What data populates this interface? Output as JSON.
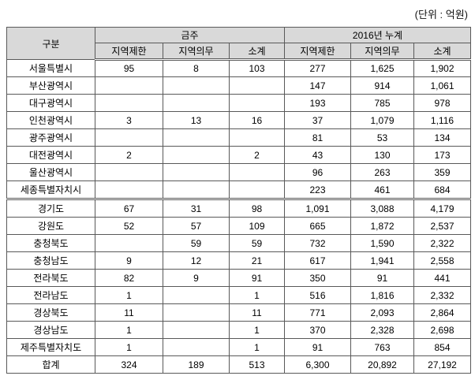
{
  "unit_label": "(단위 : 억원)",
  "colors": {
    "header_bg": "#d9d9d9",
    "border": "#595959"
  },
  "table": {
    "header": {
      "category": "구분",
      "group_this_week": "금주",
      "group_2016": "2016년 누계",
      "subheaders": [
        "지역제한",
        "지역의무",
        "소계",
        "지역제한",
        "지역의무",
        "소계"
      ]
    },
    "rows": [
      {
        "label": "서울특별시",
        "values": [
          "95",
          "8",
          "103",
          "277",
          "1,625",
          "1,902"
        ]
      },
      {
        "label": "부산광역시",
        "values": [
          "",
          "",
          "",
          "147",
          "914",
          "1,061"
        ]
      },
      {
        "label": "대구광역시",
        "values": [
          "",
          "",
          "",
          "193",
          "785",
          "978"
        ]
      },
      {
        "label": "인천광역시",
        "values": [
          "3",
          "13",
          "16",
          "37",
          "1,079",
          "1,116"
        ]
      },
      {
        "label": "광주광역시",
        "values": [
          "",
          "",
          "",
          "81",
          "53",
          "134"
        ]
      },
      {
        "label": "대전광역시",
        "values": [
          "2",
          "",
          "2",
          "43",
          "130",
          "173"
        ]
      },
      {
        "label": "울산광역시",
        "values": [
          "",
          "",
          "",
          "96",
          "263",
          "359"
        ]
      },
      {
        "label": "세종특별자치시",
        "values": [
          "",
          "",
          "",
          "223",
          "461",
          "684"
        ]
      },
      {
        "label": "경기도",
        "values": [
          "67",
          "31",
          "98",
          "1,091",
          "3,088",
          "4,179"
        ]
      },
      {
        "label": "강원도",
        "values": [
          "52",
          "57",
          "109",
          "665",
          "1,872",
          "2,537"
        ]
      },
      {
        "label": "충청북도",
        "values": [
          "",
          "59",
          "59",
          "732",
          "1,590",
          "2,322"
        ]
      },
      {
        "label": "충청남도",
        "values": [
          "9",
          "12",
          "21",
          "617",
          "1,941",
          "2,558"
        ]
      },
      {
        "label": "전라북도",
        "values": [
          "82",
          "9",
          "91",
          "350",
          "91",
          "441"
        ]
      },
      {
        "label": "전라남도",
        "values": [
          "1",
          "",
          "1",
          "516",
          "1,816",
          "2,332"
        ]
      },
      {
        "label": "경상북도",
        "values": [
          "11",
          "",
          "11",
          "771",
          "2,093",
          "2,864"
        ]
      },
      {
        "label": "경상남도",
        "values": [
          "1",
          "",
          "1",
          "370",
          "2,328",
          "2,698"
        ]
      },
      {
        "label": "제주특별자치도",
        "values": [
          "1",
          "",
          "1",
          "91",
          "763",
          "854"
        ]
      }
    ],
    "total": {
      "label": "합계",
      "values": [
        "324",
        "189",
        "513",
        "6,300",
        "20,892",
        "27,192"
      ]
    }
  }
}
